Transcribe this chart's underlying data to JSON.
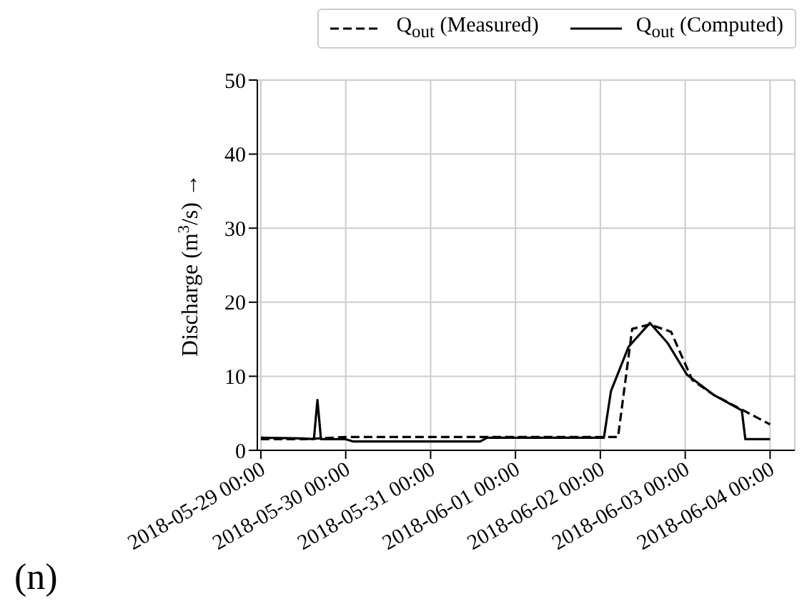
{
  "chart_data": {
    "type": "line",
    "ylabel": "Discharge (m$^{3}$/s) →",
    "annotations": [
      "(n)"
    ],
    "xlim": [
      "2018-05-28T23:00",
      "2018-06-04T07:00"
    ],
    "xticks": [
      {
        "value": "2018-05-29T00:00",
        "label": "2018-05-29 00:00"
      },
      {
        "value": "2018-05-30T00:00",
        "label": "2018-05-30 00:00"
      },
      {
        "value": "2018-05-31T00:00",
        "label": "2018-05-31 00:00"
      },
      {
        "value": "2018-06-01T00:00",
        "label": "2018-06-01 00:00"
      },
      {
        "value": "2018-06-02T00:00",
        "label": "2018-06-02 00:00"
      },
      {
        "value": "2018-06-03T00:00",
        "label": "2018-06-03 00:00"
      },
      {
        "value": "2018-06-04T00:00",
        "label": "2018-06-04 00:00"
      }
    ],
    "ylim": [
      0,
      50
    ],
    "yticks": [
      0,
      10,
      20,
      30,
      40,
      50
    ],
    "grid": true,
    "legend": "top right",
    "marker": "none",
    "series": [
      {
        "name": "Q$_{out}$ (Measured)",
        "color": "#000000",
        "line_style": "dashed",
        "x": [
          "2018-05-29T00:00",
          "2018-05-29T12:00",
          "2018-05-30T00:00",
          "2018-05-31T00:00",
          "2018-06-01T00:00",
          "2018-06-02T00:00",
          "2018-06-02T05:00",
          "2018-06-02T09:00",
          "2018-06-02T14:00",
          "2018-06-02T20:00",
          "2018-06-03T02:00",
          "2018-06-03T08:00",
          "2018-06-03T14:00",
          "2018-06-03T20:00",
          "2018-06-04T00:00"
        ],
        "values": [
          1.5,
          1.5,
          1.8,
          1.8,
          1.8,
          1.8,
          1.8,
          16.4,
          17,
          16,
          9.5,
          7.5,
          6,
          4.5,
          3.5
        ]
      },
      {
        "name": "Q$_{out}$ (Computed)",
        "color": "#000000",
        "line_style": "solid",
        "x": [
          "2018-05-29T00:00",
          "2018-05-29T12:00",
          "2018-05-29T15:00",
          "2018-05-29T16:00",
          "2018-05-29T17:00",
          "2018-05-30T00:00",
          "2018-05-30T02:00",
          "2018-05-31T14:00",
          "2018-05-31T16:00",
          "2018-06-02T01:00",
          "2018-06-02T03:00",
          "2018-06-02T08:00",
          "2018-06-02T14:00",
          "2018-06-02T19:00",
          "2018-06-03T00:30",
          "2018-06-03T08:00",
          "2018-06-03T16:00",
          "2018-06-03T17:00",
          "2018-06-04T00:00"
        ],
        "values": [
          1.7,
          1.6,
          1.5,
          6.8,
          1.5,
          1.5,
          1.2,
          1.2,
          1.7,
          1.7,
          8,
          14,
          17.2,
          14.5,
          10.2,
          7.5,
          5.4,
          1.5,
          1.5
        ]
      }
    ]
  }
}
